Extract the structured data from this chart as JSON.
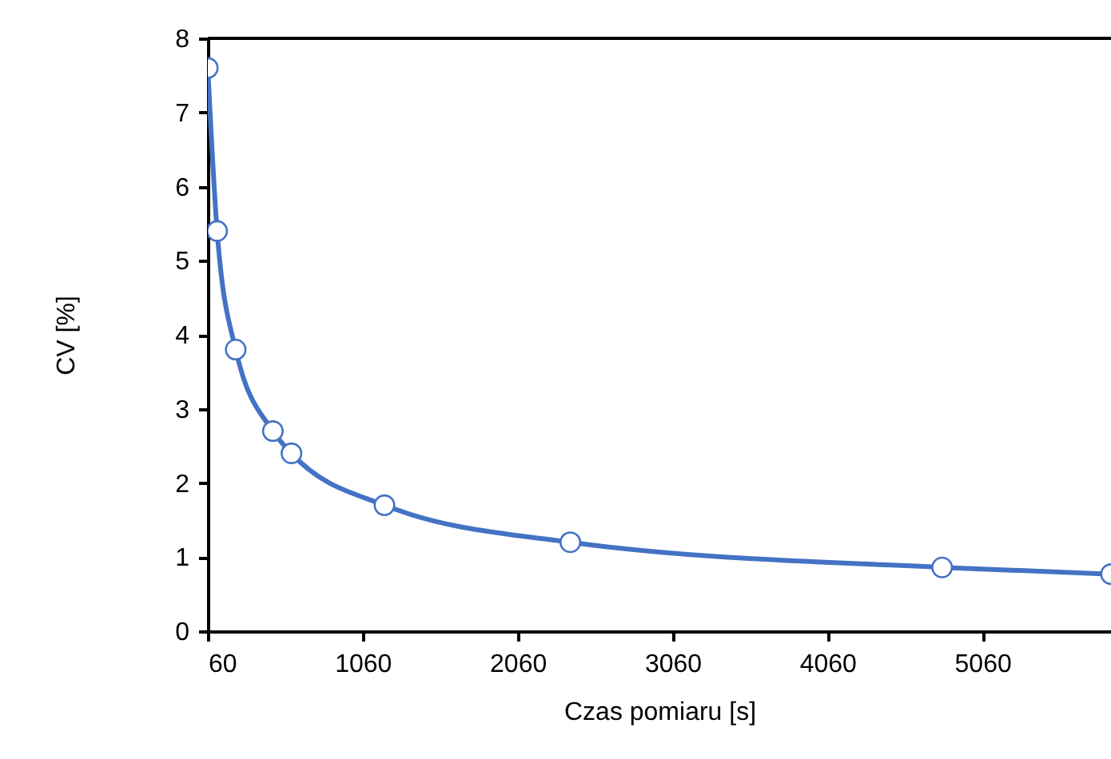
{
  "chart_data": {
    "type": "line",
    "xlabel": "Czas pomiaru [s]",
    "ylabel": "CV  [%]",
    "xlim": [
      60,
      5890
    ],
    "xticks": [
      60,
      1060,
      2060,
      3060,
      4060,
      5060
    ],
    "ylim": [
      0,
      8
    ],
    "yticks": [
      0,
      1,
      2,
      3,
      4,
      5,
      6,
      7,
      8
    ],
    "grid": false,
    "series": [
      {
        "color": "#4472c4",
        "marker": "circle",
        "x": [
          60,
          120,
          240,
          480,
          600,
          1200,
          2400,
          4800,
          5890
        ],
        "values": [
          7.6,
          5.4,
          3.8,
          2.7,
          2.4,
          1.7,
          1.2,
          0.86,
          0.77
        ]
      }
    ]
  }
}
